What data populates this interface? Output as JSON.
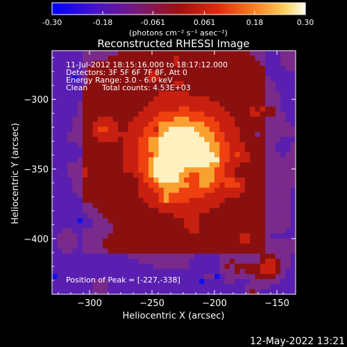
{
  "colorbar": {
    "ticks": [
      "-0.30",
      "-0.18",
      "-0.061",
      "0.061",
      "0.18",
      "0.30"
    ],
    "tick_values": [
      -0.3,
      -0.18,
      -0.061,
      0.061,
      0.18,
      0.3
    ],
    "range": [
      -0.3,
      0.3
    ],
    "units": "(photons cm⁻² s⁻¹ asec⁻²)"
  },
  "chart_data": {
    "type": "heatmap",
    "title": "Reconstructed RHESSI Image",
    "xlabel": "Heliocentric X (arcsec)",
    "ylabel": "Heliocentric Y (arcsec)",
    "xlim": [
      -330,
      -135
    ],
    "ylim": [
      -440,
      -265
    ],
    "xticks": [
      -300,
      -250,
      -200,
      -150
    ],
    "yticks": [
      -300,
      -350,
      -400
    ],
    "peak": {
      "x": -227,
      "y": -338,
      "value": 0.3
    },
    "colormap": [
      "#1010e8",
      "#5a1fb0",
      "#7a2a8a",
      "#8a1010",
      "#c82010",
      "#ef4010",
      "#f8a030",
      "#fff0c0"
    ],
    "annotations": [
      "11-Jul-2012 18:15:16.000 to 18:17:12.000",
      "Detectors: 3F 5F 6F 7F 8F, Att 0",
      "Energy Range: 3.0 - 6.0 keV",
      "Clean",
      "Total counts: 4.53E+03"
    ],
    "peak_label": "Position of Peak = [-227,-338]"
  },
  "footer": {
    "timestamp": "12-May-2022 13:21"
  }
}
